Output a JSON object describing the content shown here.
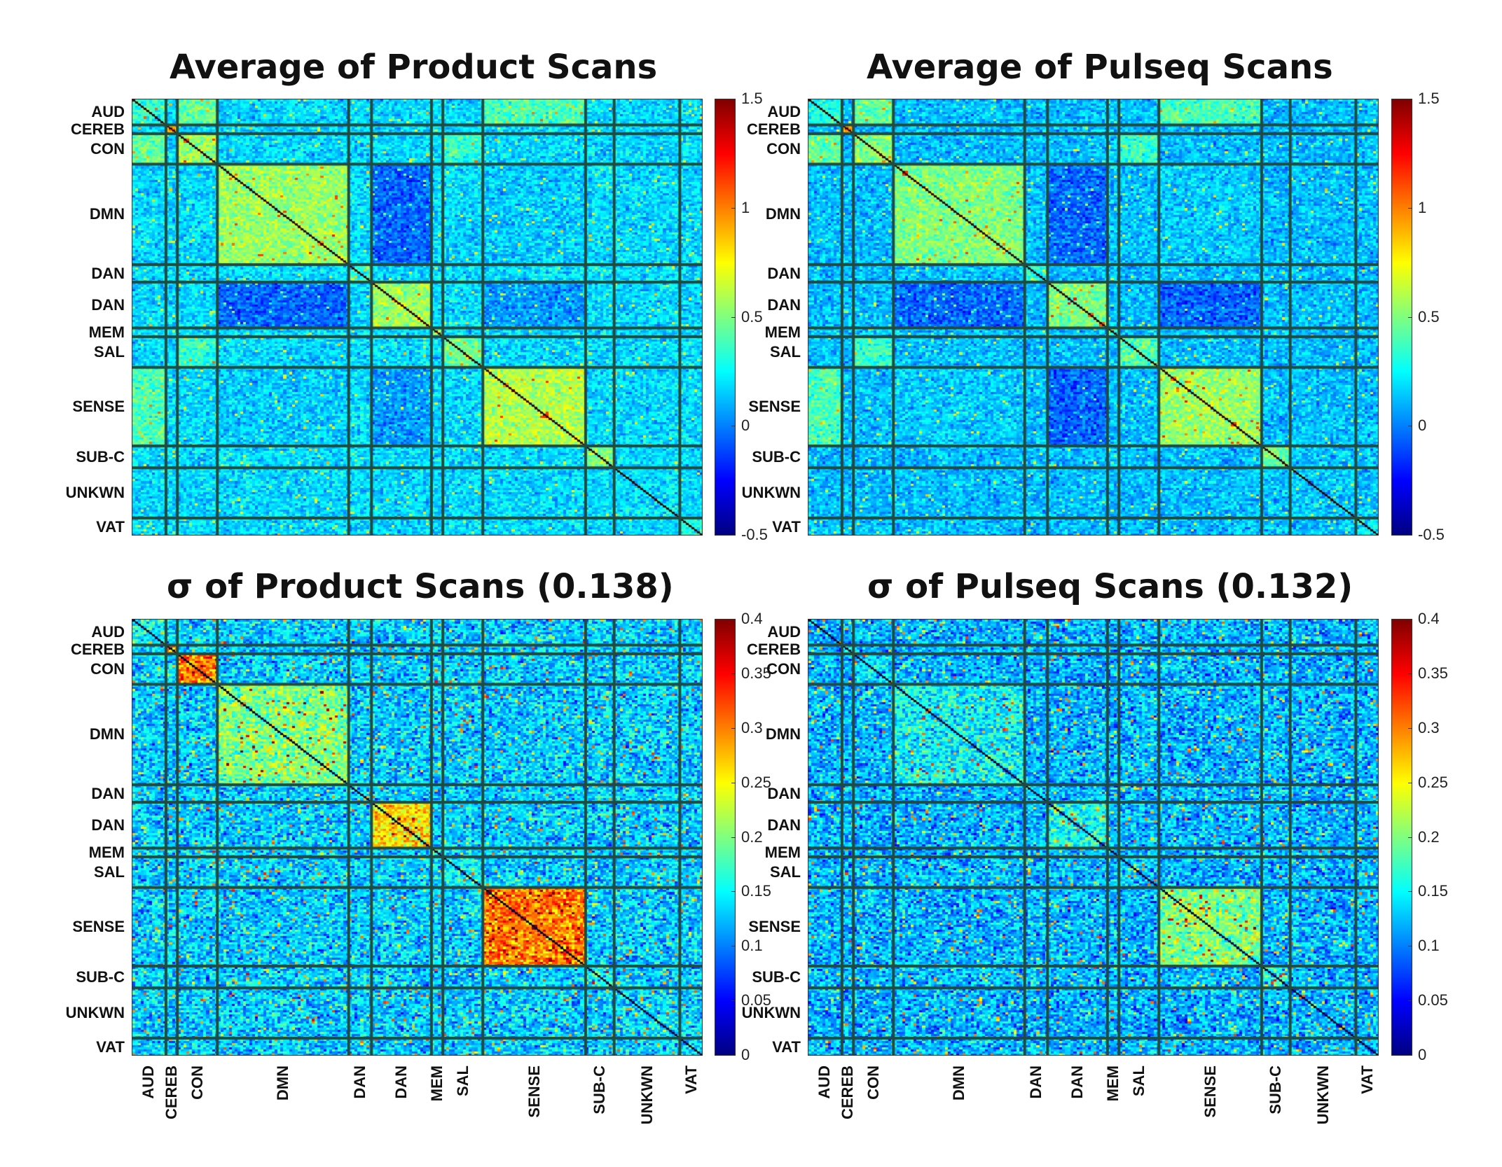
{
  "colors": {
    "grid": "#234a3e"
  },
  "networks": [
    {
      "label": "AUD",
      "size": 12
    },
    {
      "label": "CEREB",
      "size": 4
    },
    {
      "label": "CON",
      "size": 14
    },
    {
      "label": "DMN",
      "size": 46
    },
    {
      "label": "DAN",
      "size": 8
    },
    {
      "label": "DAN",
      "size": 21
    },
    {
      "label": "MEM",
      "size": 4
    },
    {
      "label": "SAL",
      "size": 14
    },
    {
      "label": "SENSE",
      "size": 36
    },
    {
      "label": "SUB-C",
      "size": 10
    },
    {
      "label": "UNKWN",
      "size": 23
    },
    {
      "label": "VAT",
      "size": 8
    }
  ],
  "chart_data": [
    {
      "type": "heatmap",
      "title": "Average of Product Scans",
      "colormap": "jet",
      "clim": [
        -0.5,
        1.5
      ],
      "colorbar_ticks": [
        "1.5",
        "1",
        "0.5",
        "0",
        "-0.5"
      ],
      "diagonal_value": 1.5
    },
    {
      "type": "heatmap",
      "title": "Average of Pulseq Scans",
      "colormap": "jet",
      "clim": [
        -0.5,
        1.5
      ],
      "colorbar_ticks": [
        "1.5",
        "1",
        "0.5",
        "0",
        "-0.5"
      ],
      "diagonal_value": 1.5
    },
    {
      "type": "heatmap",
      "title": "σ of Product Scans (0.138)",
      "colormap": "jet",
      "clim": [
        0,
        0.4
      ],
      "colorbar_ticks": [
        "0.4",
        "0.35",
        "0.3",
        "0.25",
        "0.2",
        "0.15",
        "0.1",
        "0.05",
        "0"
      ],
      "diagonal_value": 0
    },
    {
      "type": "heatmap",
      "title": "σ of Pulseq Scans (0.132)",
      "colormap": "jet",
      "clim": [
        0,
        0.4
      ],
      "colorbar_ticks": [
        "0.4",
        "0.35",
        "0.3",
        "0.25",
        "0.2",
        "0.15",
        "0.1",
        "0.05",
        "0"
      ],
      "diagonal_value": 0
    }
  ]
}
